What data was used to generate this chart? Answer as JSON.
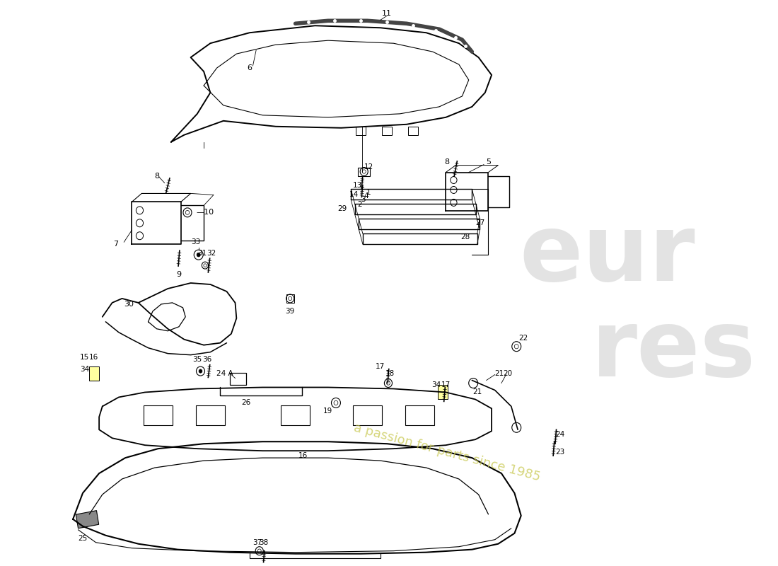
{
  "bg_color": "#ffffff",
  "line_color": "#000000",
  "watermark_color": "#c8c8c8",
  "watermark_text1": "eur",
  "watermark_text2": "res",
  "watermark_sub": "a passion for parts since 1985",
  "wm_yellow": "#d4d480"
}
